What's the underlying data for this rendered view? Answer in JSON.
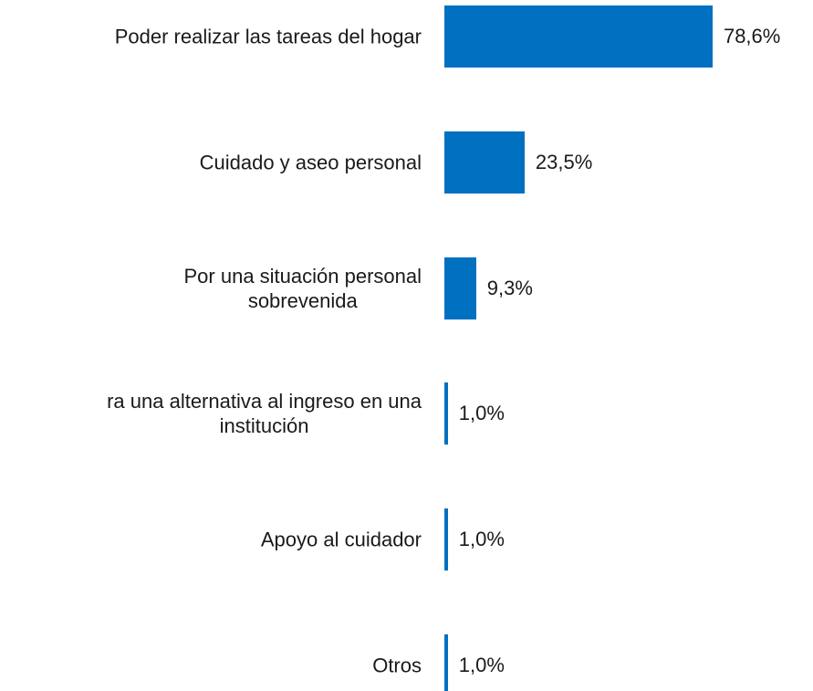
{
  "chart_data": {
    "type": "barh",
    "categories": [
      "Poder realizar las tareas del hogar",
      "Cuidado y aseo personal",
      "Por una situación personal\nsobrevenida",
      "ra una alternativa al ingreso en una\ninstitución",
      "Apoyo al cuidador",
      "Otros"
    ],
    "values": [
      78.6,
      23.5,
      9.3,
      1.0,
      1.0,
      1.0
    ],
    "value_labels": [
      "78,6%",
      "23,5%",
      "9,3%",
      "1,0%",
      "1,0%",
      "1,0%"
    ],
    "color": "#0070c0",
    "xlim": [
      0,
      100
    ]
  }
}
